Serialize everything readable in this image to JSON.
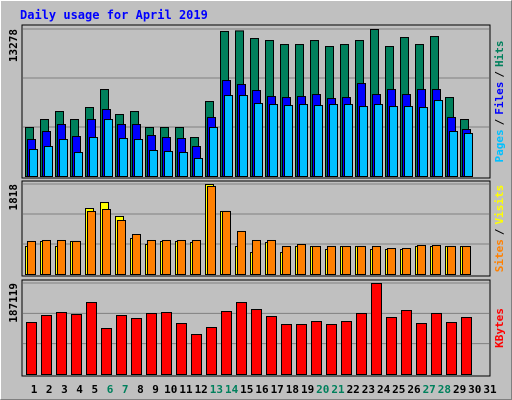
{
  "chart_data": [
    {
      "type": "bar",
      "title": "Daily usage for April 2019",
      "ylim": [
        0,
        13278
      ],
      "yticks": [
        13278
      ],
      "legend_separator": "/",
      "series": [
        {
          "name": "Pages",
          "color": "#00c0ff",
          "values": [
            2438,
            2709,
            3341,
            2167,
            3522,
            5147,
            3431,
            3341,
            2348,
            2258,
            2167,
            1625,
            4425,
            7314,
            7314,
            6592,
            6502,
            6411,
            6502,
            6411,
            6502,
            6502,
            6321,
            6502,
            6321,
            6321,
            6231,
            6863,
            4064,
            3883,
            null
          ]
        },
        {
          "name": "Files",
          "color": "#0000ff",
          "values": [
            3341,
            4064,
            4696,
            3612,
            5147,
            6050,
            4696,
            4696,
            3702,
            3522,
            3431,
            2709,
            5328,
            8669,
            8308,
            7766,
            7224,
            7134,
            7224,
            7405,
            7043,
            7134,
            8398,
            7405,
            7856,
            7405,
            7856,
            7856,
            5328,
            4244,
            null
          ]
        },
        {
          "name": "Hits",
          "color": "#00805c",
          "values": [
            4425,
            5148,
            5870,
            5148,
            6231,
            7857,
            5599,
            5870,
            4425,
            4425,
            4425,
            3522,
            6773,
            13100,
            13150,
            12463,
            12282,
            11921,
            11921,
            12282,
            11740,
            11921,
            12282,
            13278,
            11740,
            12553,
            11921,
            12643,
            7134,
            5148,
            null
          ]
        }
      ]
    },
    {
      "type": "bar",
      "ylim": [
        0,
        1818
      ],
      "yticks": [
        1818
      ],
      "legend_separator": "/",
      "series": [
        {
          "name": "Sites",
          "color": "#ff8000",
          "values": [
            667,
            687,
            687,
            667,
            1273,
            1313,
            1091,
            808,
            687,
            687,
            687,
            687,
            1778,
            1273,
            869,
            687,
            687,
            566,
            606,
            566,
            566,
            566,
            566,
            566,
            525,
            525,
            586,
            586,
            566,
            566,
            null
          ]
        },
        {
          "name": "Visits",
          "color": "#ffff00",
          "values": [
            566,
            667,
            566,
            667,
            1333,
            1454,
            1172,
            727,
            606,
            667,
            667,
            646,
            1818,
            1273,
            566,
            444,
            646,
            444,
            566,
            566,
            505,
            566,
            566,
            505,
            505,
            505,
            566,
            566,
            566,
            566,
            null
          ]
        }
      ]
    },
    {
      "type": "bar",
      "ylim": [
        0,
        187119
      ],
      "yticks": [
        187119
      ],
      "categories": [
        "1",
        "2",
        "3",
        "4",
        "5",
        "6",
        "7",
        "8",
        "9",
        "10",
        "11",
        "12",
        "13",
        "14",
        "15",
        "16",
        "17",
        "18",
        "19",
        "20",
        "21",
        "22",
        "23",
        "24",
        "25",
        "26",
        "27",
        "28",
        "29",
        "30",
        "31"
      ],
      "category_colors": [
        "#000000",
        "#000000",
        "#000000",
        "#000000",
        "#000000",
        "#00805c",
        "#00805c",
        "#000000",
        "#000000",
        "#000000",
        "#000000",
        "#000000",
        "#00805c",
        "#00805c",
        "#000000",
        "#000000",
        "#000000",
        "#000000",
        "#000000",
        "#00805c",
        "#00805c",
        "#000000",
        "#000000",
        "#000000",
        "#000000",
        "#000000",
        "#00805c",
        "#00805c",
        "#000000",
        "#000000",
        "#000000"
      ],
      "series": [
        {
          "name": "KBytes",
          "color": "#ff0000",
          "values": [
            106912,
            121304,
            127472,
            123360,
            148032,
            94576,
            121304,
            115136,
            125416,
            127472,
            104856,
            82240,
            96632,
            129528,
            148032,
            133640,
            119248,
            102800,
            102800,
            108968,
            102800,
            108968,
            125416,
            187119,
            117192,
            131584,
            104856,
            125416,
            106912,
            117192,
            null
          ]
        }
      ]
    }
  ]
}
